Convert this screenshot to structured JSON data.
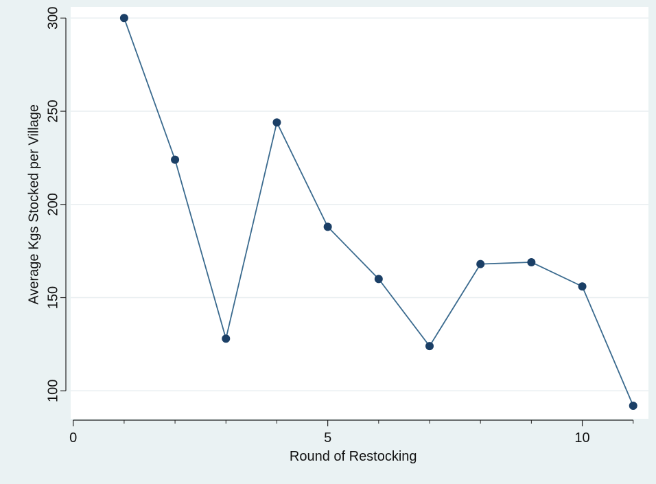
{
  "chart_data": {
    "type": "line",
    "title": "",
    "xlabel": "Round of Restocking",
    "ylabel": "Average Kgs Stocked per Village",
    "x": [
      1,
      2,
      3,
      4,
      5,
      6,
      7,
      8,
      9,
      10,
      11
    ],
    "series": [
      {
        "values": [
          300,
          224,
          128,
          244,
          188,
          160,
          124,
          168,
          169,
          156,
          92
        ]
      }
    ],
    "xlim": [
      -0.05,
      11.3
    ],
    "ylim": [
      85,
      306
    ],
    "xticks": [
      0,
      5,
      10
    ],
    "xticks_minor": [
      1,
      2,
      3,
      4,
      6,
      7,
      8,
      9,
      11
    ],
    "yticks": [
      100,
      150,
      200,
      250,
      300
    ],
    "grid": true,
    "colors": {
      "line": "#3a6a8e",
      "marker": "#1b3f66",
      "plot_bg": "#ffffff",
      "page_bg": "#eaf2f3",
      "grid": "#e8eef0",
      "axis": "#222222"
    }
  }
}
